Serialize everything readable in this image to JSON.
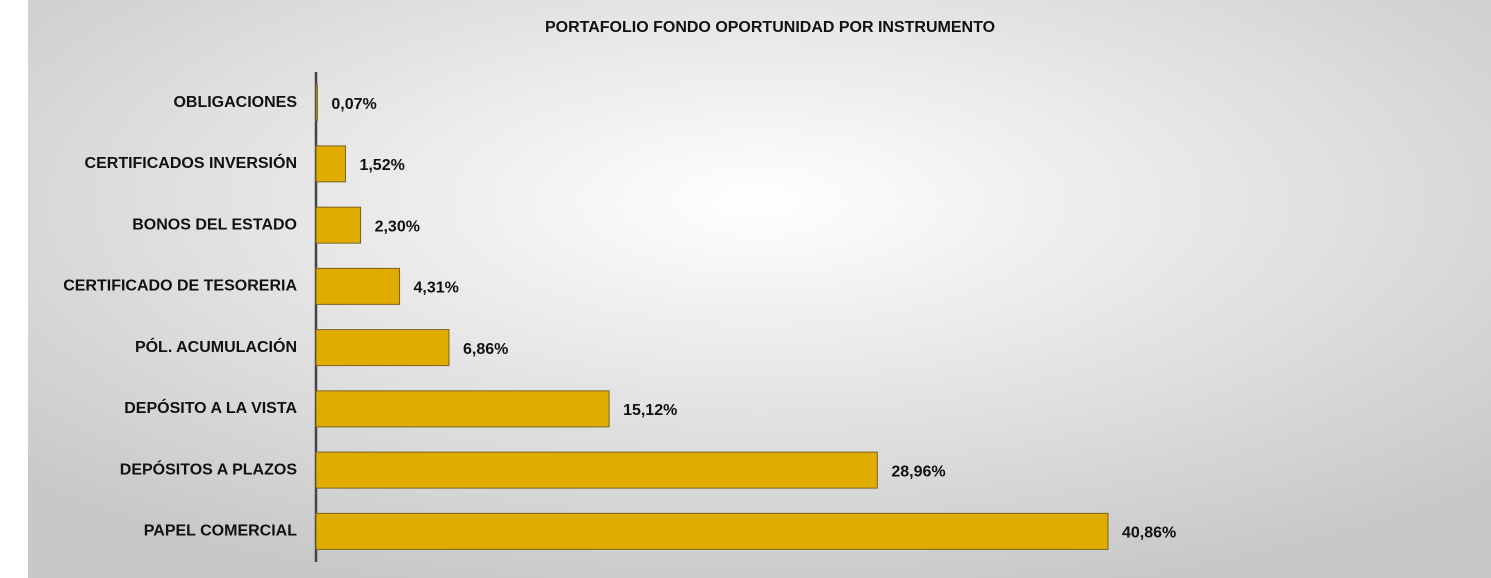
{
  "chart_data": {
    "type": "bar",
    "orientation": "horizontal",
    "title": "PORTAFOLIO FONDO OPORTUNIDAD POR INSTRUMENTO",
    "categories": [
      "OBLIGACIONES",
      "CERTIFICADOS INVERSIÓN",
      "BONOS DEL ESTADO",
      "CERTIFICADO DE TESORERIA",
      "PÓL. ACUMULACIÓN",
      "DEPÓSITO A LA VISTA",
      "DEPÓSITOS A PLAZOS",
      "PAPEL COMERCIAL"
    ],
    "values": [
      0.07,
      1.52,
      2.3,
      4.31,
      6.86,
      15.12,
      28.96,
      40.86
    ],
    "value_labels": [
      "0,07%",
      "1,52%",
      "2,30%",
      "4,31%",
      "6,86%",
      "15,12%",
      "28,96%",
      "40,86%"
    ],
    "color": "#e0ac00"
  }
}
